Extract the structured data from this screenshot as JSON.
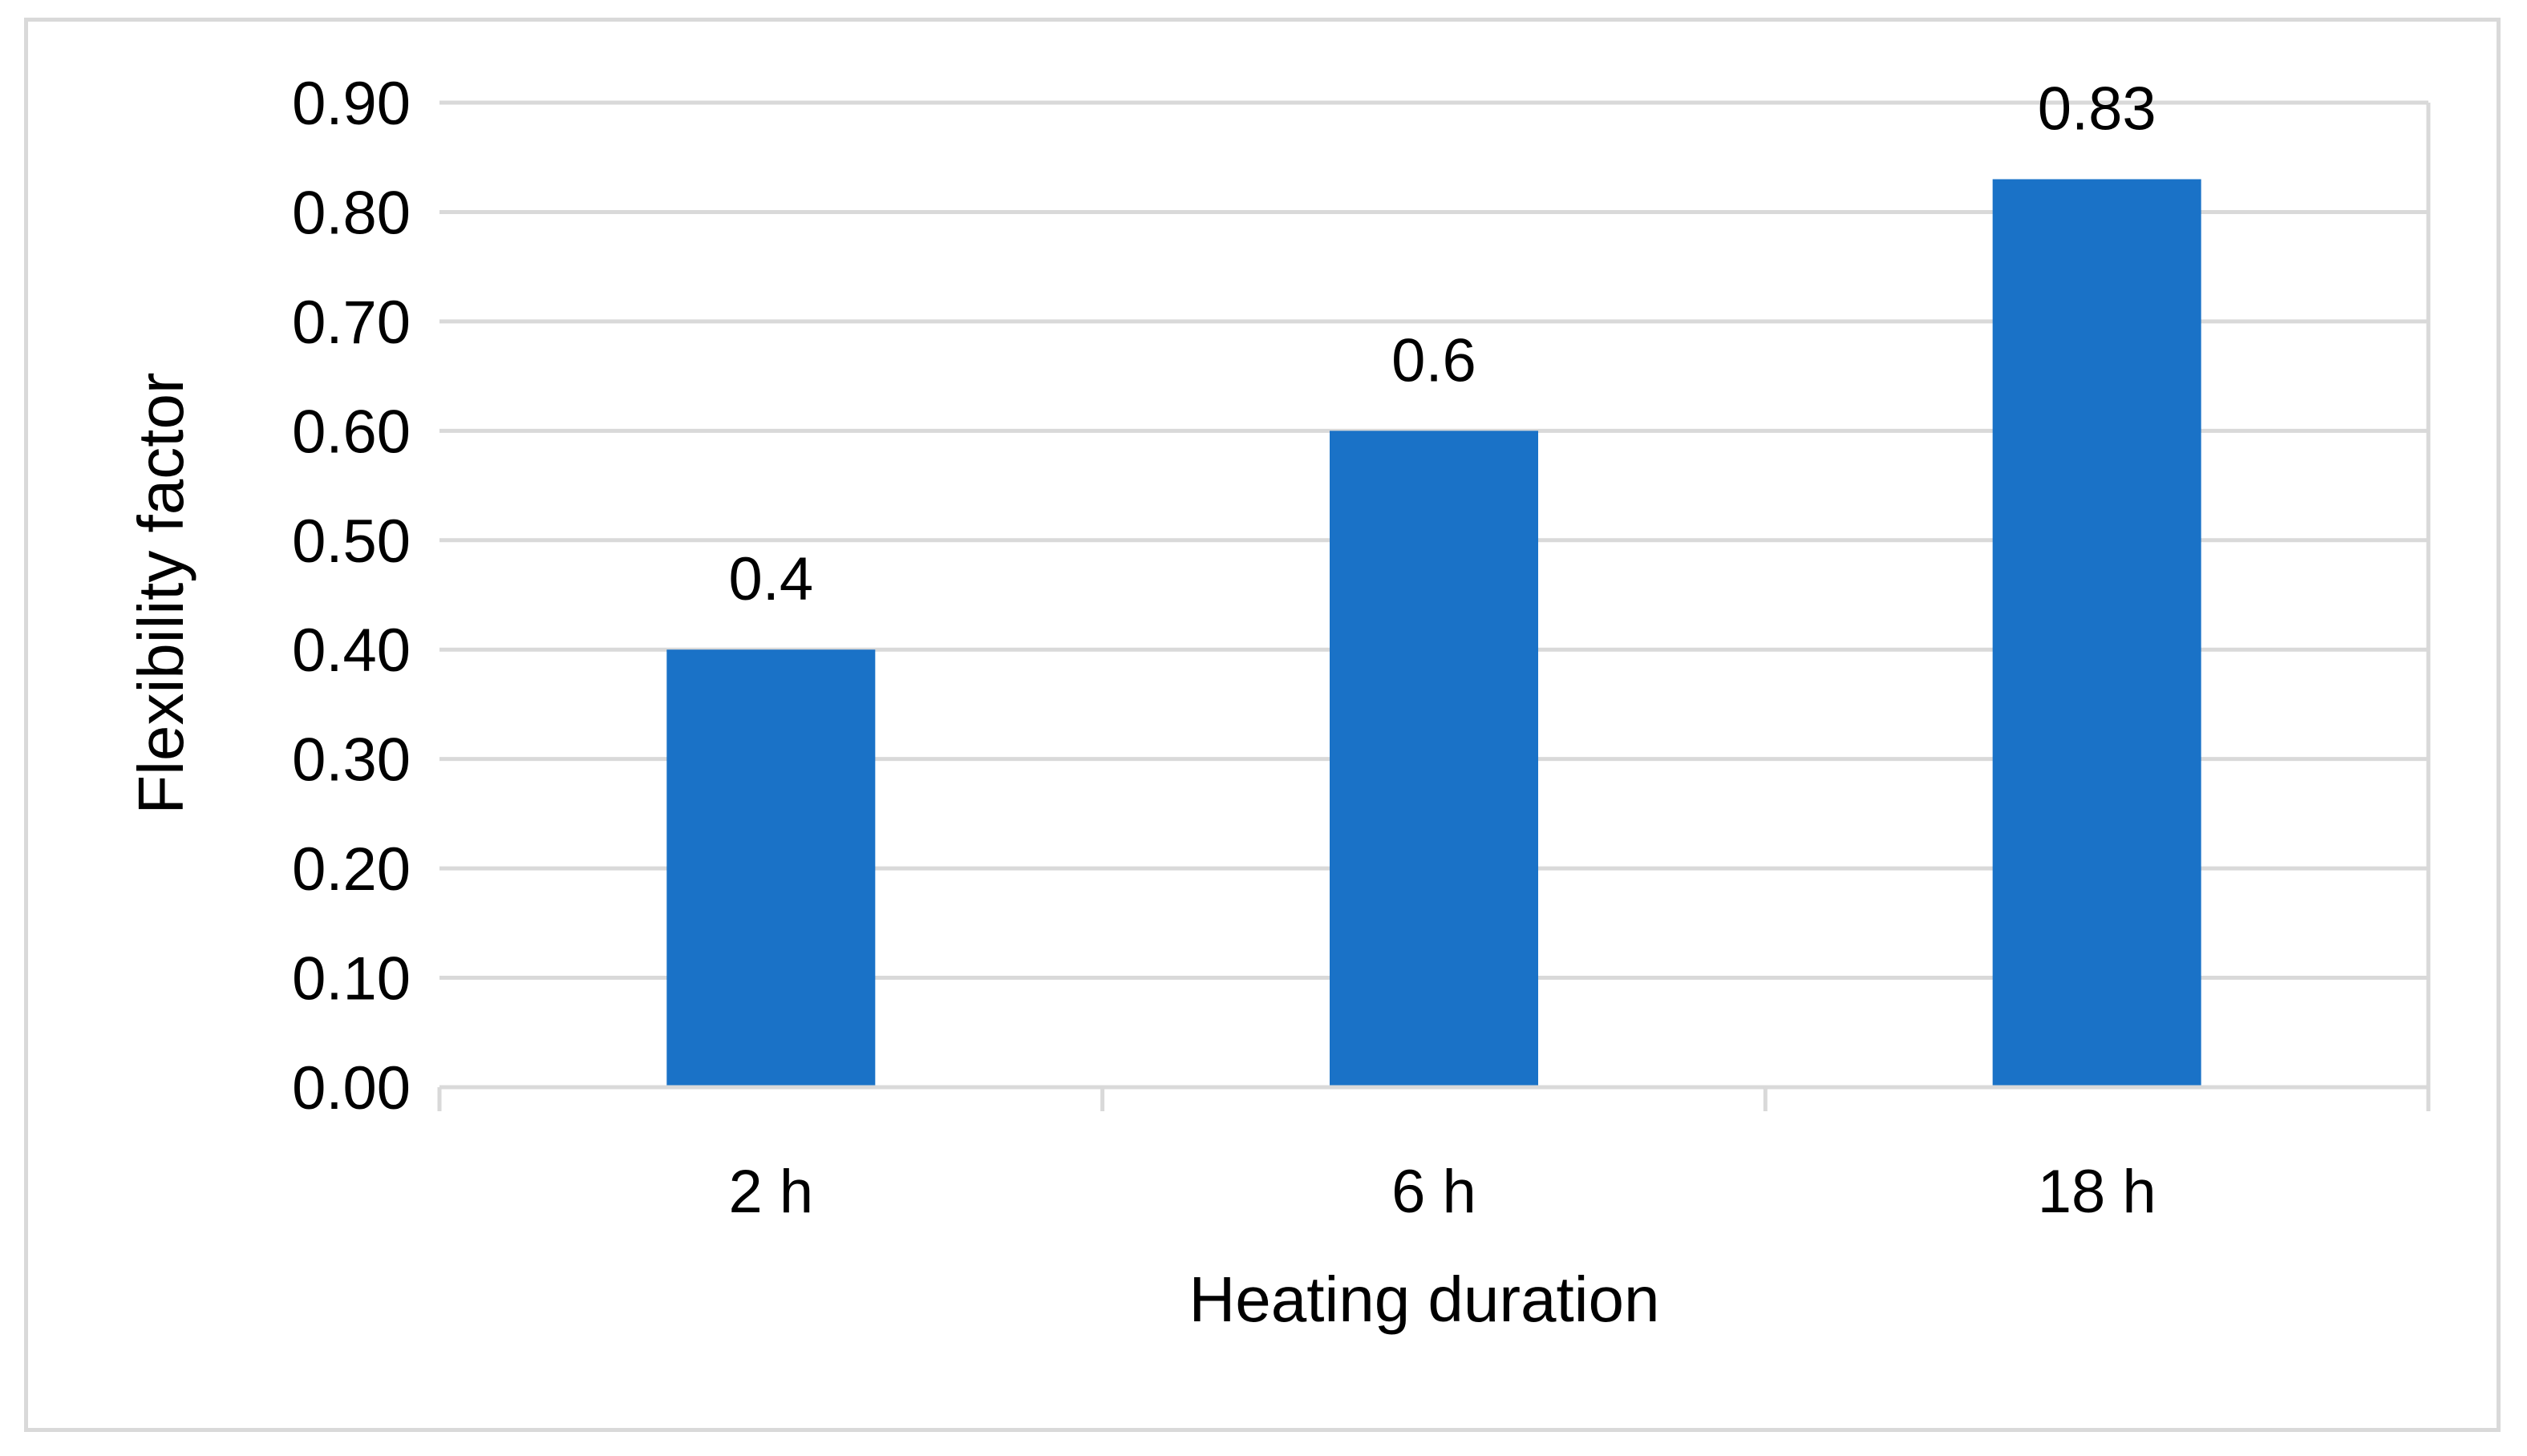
{
  "chart_data": {
    "type": "bar",
    "title": "",
    "xlabel": "Heating duration",
    "ylabel": "Flexibility factor",
    "categories": [
      "2 h",
      "6 h",
      "18 h"
    ],
    "values": [
      0.4,
      0.6,
      0.83
    ],
    "value_labels": [
      "0.4",
      "0.6",
      "0.83"
    ],
    "y_ticks": [
      "0.00",
      "0.10",
      "0.20",
      "0.30",
      "0.40",
      "0.50",
      "0.60",
      "0.70",
      "0.80",
      "0.90"
    ],
    "ylim": [
      0,
      0.9
    ],
    "grid": true,
    "legend": "none",
    "bar_color": "#1a72c7",
    "grid_color": "#d9d9d9"
  }
}
